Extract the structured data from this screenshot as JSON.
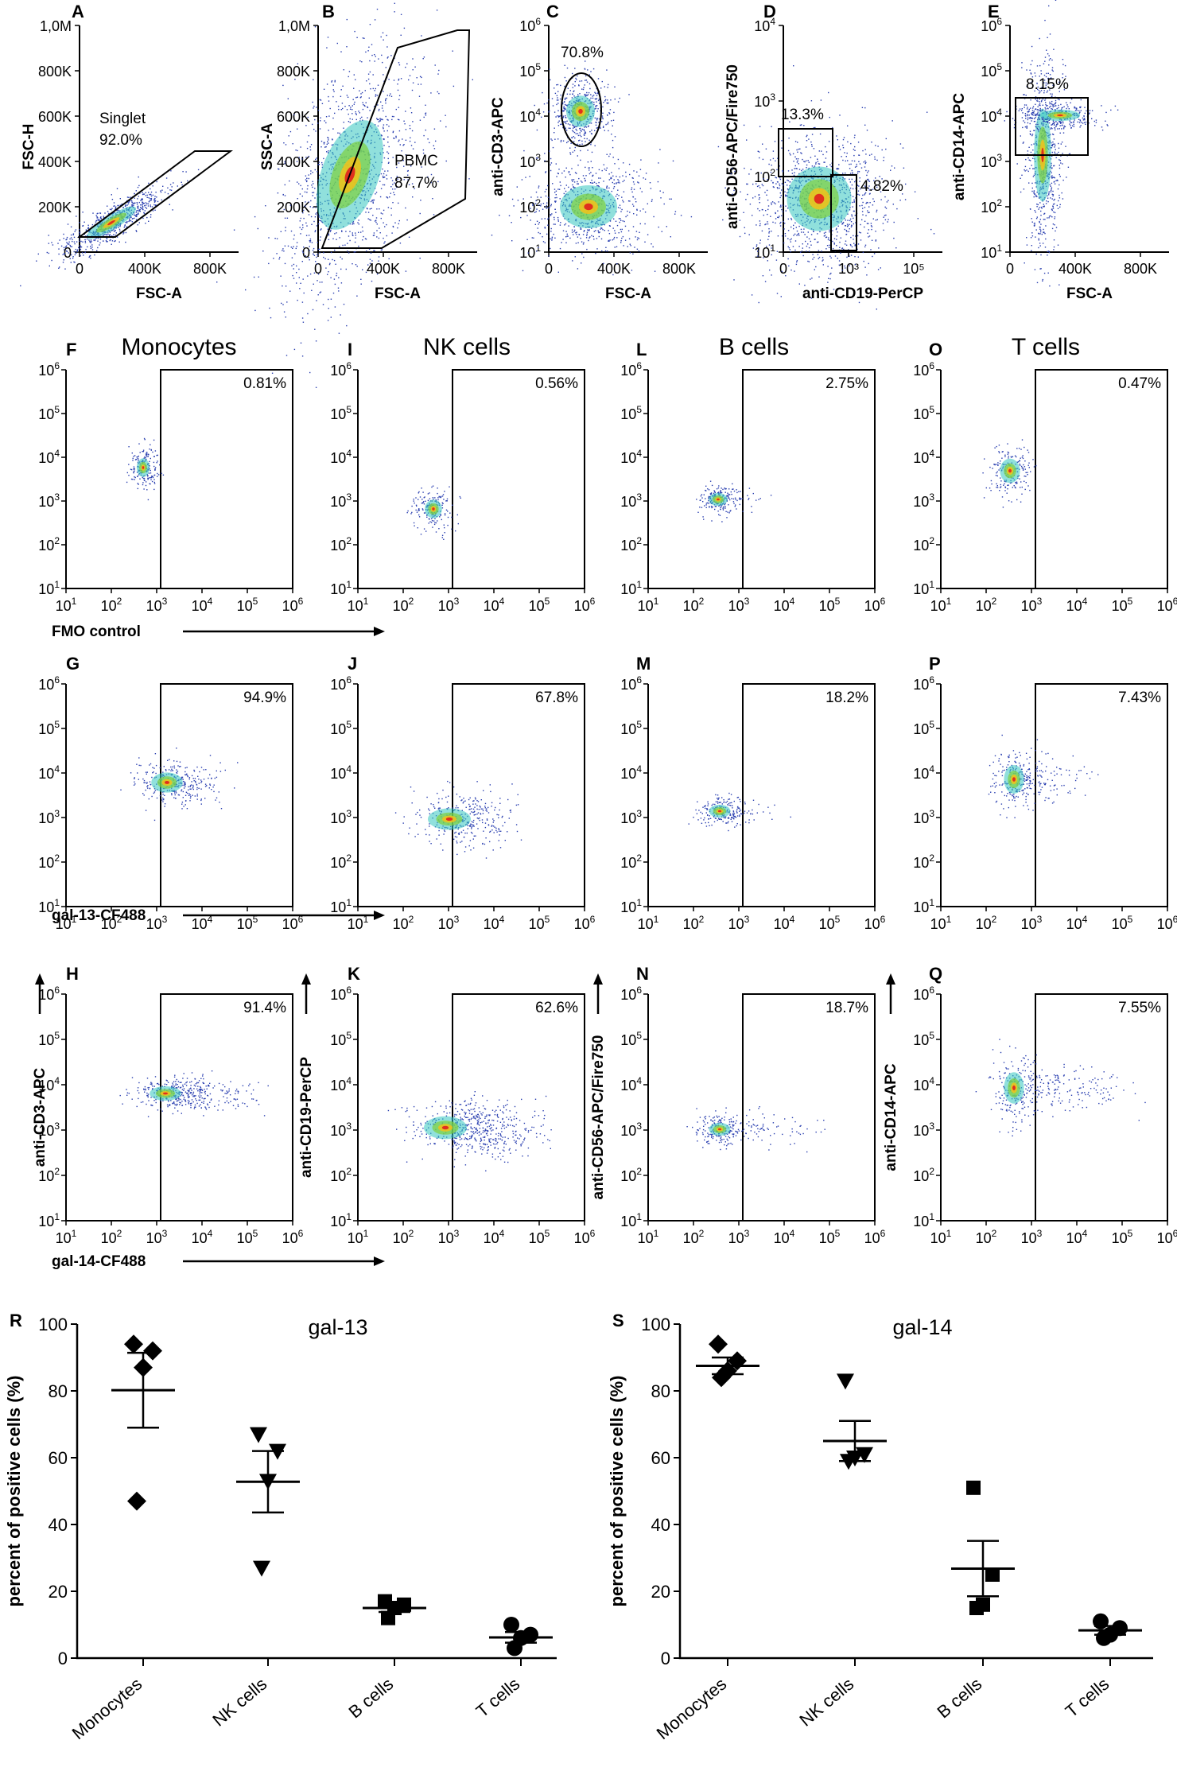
{
  "figure": {
    "top_row": [
      {
        "id": "A",
        "letter": "A",
        "xlabel": "FSC-A",
        "ylabel": "FSC-H",
        "xticks": [
          "0",
          "400K",
          "800K"
        ],
        "yticks": [
          "0",
          "200K",
          "400K",
          "600K",
          "800K",
          "1,0M"
        ],
        "gate": {
          "shape": "parallelogram",
          "label": "Singlet",
          "value": "92.0%"
        }
      },
      {
        "id": "B",
        "letter": "B",
        "xlabel": "FSC-A",
        "ylabel": "SSC-A",
        "xticks": [
          "0",
          "400K",
          "800K"
        ],
        "yticks": [
          "0",
          "200K",
          "400K",
          "600K",
          "800K",
          "1,0M"
        ],
        "gate": {
          "shape": "polygon",
          "label": "PBMC",
          "value": "87.7%"
        }
      },
      {
        "id": "C",
        "letter": "C",
        "xlabel": "FSC-A",
        "ylabel": "anti-CD3-APC",
        "xticks": [
          "0",
          "400K",
          "800K"
        ],
        "ylog": [
          1,
          6
        ],
        "gate": {
          "shape": "ellipse",
          "value": "70.8%"
        }
      },
      {
        "id": "D",
        "letter": "D",
        "xlabel": "anti-CD19-PerCP",
        "ylabel": "anti-CD56-APC/Fire750",
        "xticks": [
          "0",
          "10³",
          "10⁵"
        ],
        "ylog": [
          1,
          4
        ],
        "gates": [
          {
            "shape": "rect-upper",
            "value": "13.3%"
          },
          {
            "shape": "rect-lower-right",
            "value": "4.82%"
          }
        ]
      },
      {
        "id": "E",
        "letter": "E",
        "xlabel": "FSC-A",
        "ylabel": "anti-CD14-APC",
        "xticks": [
          "0",
          "400K",
          "800K"
        ],
        "ylog": [
          1,
          6
        ],
        "gate": {
          "shape": "rect",
          "value": "8.15%"
        }
      }
    ],
    "column_titles": [
      "Monocytes",
      "NK cells",
      "B cells",
      "T cells"
    ],
    "axis_range_log": [
      1,
      6
    ],
    "row_labels": [
      "FMO control",
      "gal-13-CF488",
      "gal-14-CF488"
    ],
    "column_ylabels": [
      "anti-CD3-APC",
      "anti-CD19-PerCP",
      "anti-CD56-APC/Fire750",
      "anti-CD14-APC"
    ],
    "grid_panels": [
      {
        "letter": "F",
        "pct": "0.81%"
      },
      {
        "letter": "I",
        "pct": "0.56%"
      },
      {
        "letter": "L",
        "pct": "2.75%"
      },
      {
        "letter": "O",
        "pct": "0.47%"
      },
      {
        "letter": "G",
        "pct": "94.9%"
      },
      {
        "letter": "J",
        "pct": "67.8%"
      },
      {
        "letter": "M",
        "pct": "18.2%"
      },
      {
        "letter": "P",
        "pct": "7.43%"
      },
      {
        "letter": "H",
        "pct": "91.4%"
      },
      {
        "letter": "K",
        "pct": "62.6%"
      },
      {
        "letter": "N",
        "pct": "18.7%"
      },
      {
        "letter": "Q",
        "pct": "7.55%"
      }
    ]
  },
  "chart_data": [
    {
      "type": "scatter",
      "panel": "R",
      "title": "gal-13",
      "xlabel": "",
      "ylabel": "percent of positive cells (%)",
      "ylim": [
        0,
        100
      ],
      "yticks": [
        0,
        20,
        40,
        60,
        80,
        100
      ],
      "categories": [
        "Monocytes",
        "NK cells",
        "B cells",
        "T cells"
      ],
      "series": [
        {
          "name": "Monocytes",
          "marker": "diamond",
          "values": [
            94,
            92,
            87,
            47
          ],
          "mean": 80.2,
          "sem": 11.2
        },
        {
          "name": "NK cells",
          "marker": "triangle-down",
          "values": [
            67,
            62,
            53,
            27
          ],
          "mean": 52.8,
          "sem": 9.2
        },
        {
          "name": "B cells",
          "marker": "square",
          "values": [
            17,
            16,
            15,
            12
          ],
          "mean": 15,
          "sem": 1.2
        },
        {
          "name": "T cells",
          "marker": "circle",
          "values": [
            10,
            7,
            6,
            3
          ],
          "mean": 6.2,
          "sem": 1.6
        }
      ]
    },
    {
      "type": "scatter",
      "panel": "S",
      "title": "gal-14",
      "xlabel": "",
      "ylabel": "percent of positive cells (%)",
      "ylim": [
        0,
        100
      ],
      "yticks": [
        0,
        20,
        40,
        60,
        80,
        100
      ],
      "categories": [
        "Monocytes",
        "NK cells",
        "B cells",
        "T cells"
      ],
      "series": [
        {
          "name": "Monocytes",
          "marker": "diamond",
          "values": [
            94,
            89,
            86,
            84
          ],
          "mean": 87.5,
          "sem": 2.5
        },
        {
          "name": "NK cells",
          "marker": "triangle-down",
          "values": [
            83,
            61,
            60,
            59
          ],
          "mean": 65,
          "sem": 6
        },
        {
          "name": "B cells",
          "marker": "square",
          "values": [
            51,
            25,
            16,
            15
          ],
          "mean": 26.8,
          "sem": 8.3
        },
        {
          "name": "T cells",
          "marker": "circle",
          "values": [
            11,
            9,
            7,
            6
          ],
          "mean": 8.3,
          "sem": 1.3
        }
      ]
    }
  ]
}
